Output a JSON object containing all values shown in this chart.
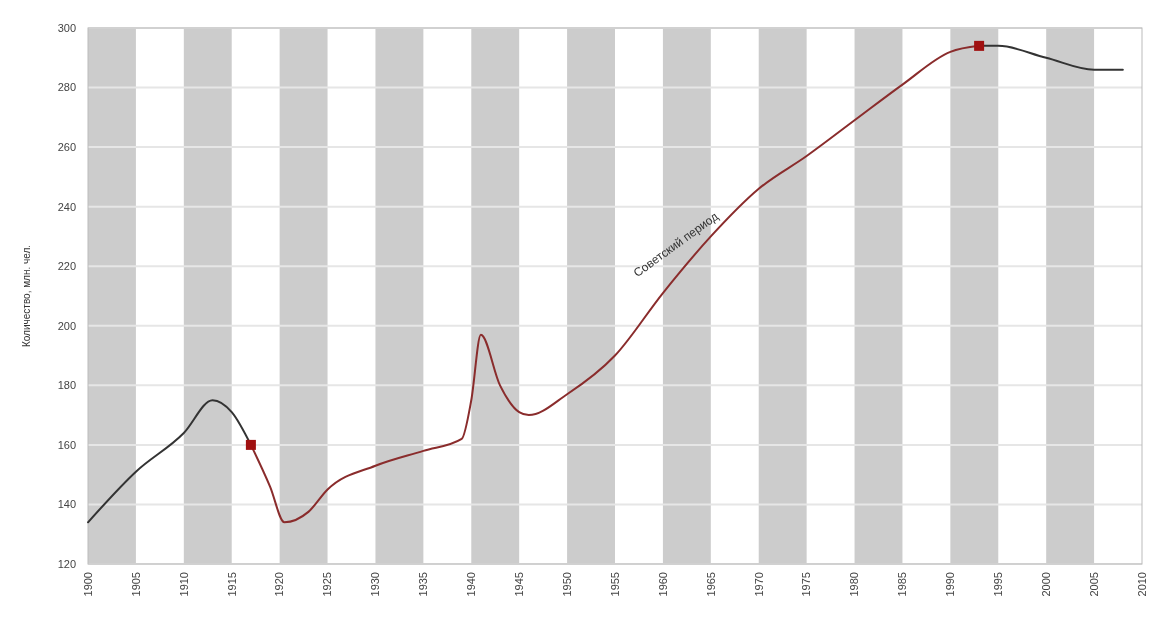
{
  "chart_data": {
    "type": "line",
    "ylabel": "Количество, млн. чел.",
    "xlim": [
      1900,
      2010
    ],
    "xticks": [
      1900,
      1905,
      1910,
      1915,
      1920,
      1925,
      1930,
      1935,
      1940,
      1945,
      1950,
      1955,
      1960,
      1965,
      1970,
      1975,
      1980,
      1985,
      1990,
      1995,
      2000,
      2005,
      2010
    ],
    "ylim": [
      120,
      300
    ],
    "yticks": [
      120,
      140,
      160,
      180,
      200,
      220,
      240,
      260,
      280,
      300
    ],
    "grid": "y",
    "marker": "none",
    "line_style": "solid",
    "bands": [
      {
        "axis": "x",
        "from": 1900,
        "to": 1905,
        "color": "#cccccc"
      },
      {
        "axis": "x",
        "from": 1910,
        "to": 1915,
        "color": "#cccccc"
      },
      {
        "axis": "x",
        "from": 1920,
        "to": 1925,
        "color": "#cccccc"
      },
      {
        "axis": "x",
        "from": 1930,
        "to": 1935,
        "color": "#cccccc"
      },
      {
        "axis": "x",
        "from": 1940,
        "to": 1945,
        "color": "#cccccc"
      },
      {
        "axis": "x",
        "from": 1950,
        "to": 1955,
        "color": "#cccccc"
      },
      {
        "axis": "x",
        "from": 1960,
        "to": 1965,
        "color": "#cccccc"
      },
      {
        "axis": "x",
        "from": 1970,
        "to": 1975,
        "color": "#cccccc"
      },
      {
        "axis": "x",
        "from": 1980,
        "to": 1985,
        "color": "#cccccc"
      },
      {
        "axis": "x",
        "from": 1990,
        "to": 1995,
        "color": "#cccccc"
      },
      {
        "axis": "x",
        "from": 2000,
        "to": 2005,
        "color": "#cccccc"
      }
    ],
    "annotations": [
      "Советский период"
    ],
    "series": [
      {
        "color": "#8a2c2c",
        "x": [
          1917,
          1919,
          1920.5,
          1923,
          1925,
          1930,
          1935,
          1939,
          1940,
          1941,
          1943,
          1945,
          1946,
          1950,
          1955,
          1960,
          1965,
          1970,
          1975,
          1980,
          1985,
          1990,
          1993
        ],
        "values": [
          160,
          146,
          134,
          137.5,
          145,
          153,
          158,
          162,
          175,
          197,
          180,
          171,
          170,
          177,
          190,
          211,
          230,
          246,
          257,
          269,
          281,
          292,
          294
        ]
      },
      {
        "color": "#333333",
        "x": [
          1900,
          1905,
          1910,
          1913,
          1915,
          1917,
          1919,
          1920.5,
          1923,
          1925,
          1930,
          1935,
          1939,
          1940,
          1941,
          1943,
          1945,
          1946,
          1950,
          1955,
          1960,
          1965,
          1970,
          1975,
          1980,
          1985,
          1990,
          1993,
          1995,
          2000,
          2005,
          2008
        ],
        "values": [
          134,
          151,
          164,
          175,
          171,
          160,
          null,
          null,
          null,
          null,
          null,
          null,
          null,
          null,
          null,
          null,
          null,
          null,
          null,
          null,
          null,
          null,
          null,
          null,
          null,
          null,
          null,
          294,
          294,
          290,
          286,
          286
        ]
      },
      {
        "type": "scatter",
        "color": "#a01010",
        "marker": "square",
        "x": [
          1917,
          1993
        ],
        "values": [
          160,
          294
        ]
      }
    ]
  }
}
